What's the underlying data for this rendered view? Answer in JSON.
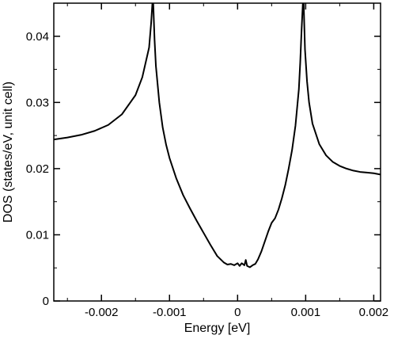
{
  "chart_data": {
    "type": "line",
    "title": "",
    "xlabel": "Energy [eV]",
    "ylabel": "DOS (states/eV, unit cell)",
    "xlim": [
      -0.0027,
      0.0021
    ],
    "ylim": [
      0,
      0.045
    ],
    "grid": false,
    "legend": "none",
    "x_ticks": [
      {
        "value": -0.002,
        "label": "-0.002"
      },
      {
        "value": -0.001,
        "label": "-0.001"
      },
      {
        "value": 0,
        "label": "0"
      },
      {
        "value": 0.001,
        "label": "0.001"
      },
      {
        "value": 0.002,
        "label": "0.002"
      }
    ],
    "y_ticks": [
      {
        "value": 0,
        "label": "0"
      },
      {
        "value": 0.01,
        "label": "0.01"
      },
      {
        "value": 0.02,
        "label": "0.02"
      },
      {
        "value": 0.03,
        "label": "0.03"
      },
      {
        "value": 0.04,
        "label": "0.04"
      }
    ],
    "series": [
      {
        "color": "#000000",
        "points": [
          [
            -0.0027,
            0.0244
          ],
          [
            -0.0025,
            0.0247
          ],
          [
            -0.0023,
            0.0251
          ],
          [
            -0.0021,
            0.0257
          ],
          [
            -0.0019,
            0.0266
          ],
          [
            -0.0017,
            0.0282
          ],
          [
            -0.0015,
            0.0311
          ],
          [
            -0.0014,
            0.0338
          ],
          [
            -0.0013,
            0.0383
          ],
          [
            -0.00127,
            0.042
          ],
          [
            -0.00125,
            0.0452
          ],
          [
            -0.00124,
            0.0452
          ],
          [
            -0.00122,
            0.0395
          ],
          [
            -0.0012,
            0.0355
          ],
          [
            -0.00115,
            0.03
          ],
          [
            -0.0011,
            0.0262
          ],
          [
            -0.00105,
            0.0236
          ],
          [
            -0.001,
            0.0216
          ],
          [
            -0.0009,
            0.0185
          ],
          [
            -0.0008,
            0.016
          ],
          [
            -0.0007,
            0.014
          ],
          [
            -0.0006,
            0.0121
          ],
          [
            -0.0005,
            0.0103
          ],
          [
            -0.0004,
            0.0085
          ],
          [
            -0.0003,
            0.0068
          ],
          [
            -0.0002,
            0.0058
          ],
          [
            -0.00015,
            0.0055
          ],
          [
            -0.0001,
            0.0056
          ],
          [
            -5e-05,
            0.0054
          ],
          [
            0,
            0.0057
          ],
          [
            3e-05,
            0.0053
          ],
          [
            6e-05,
            0.0057
          ],
          [
            0.0001,
            0.0054
          ],
          [
            0.00012,
            0.0062
          ],
          [
            0.00014,
            0.0053
          ],
          [
            0.00018,
            0.0051
          ],
          [
            0.00022,
            0.0054
          ],
          [
            0.00026,
            0.0056
          ],
          [
            0.0003,
            0.0063
          ],
          [
            0.00035,
            0.0075
          ],
          [
            0.0004,
            0.009
          ],
          [
            0.00045,
            0.0105
          ],
          [
            0.0005,
            0.0118
          ],
          [
            0.00055,
            0.0125
          ],
          [
            0.0006,
            0.0138
          ],
          [
            0.00065,
            0.0155
          ],
          [
            0.0007,
            0.0175
          ],
          [
            0.00075,
            0.02
          ],
          [
            0.0008,
            0.0228
          ],
          [
            0.00085,
            0.0265
          ],
          [
            0.0009,
            0.032
          ],
          [
            0.00092,
            0.036
          ],
          [
            0.00094,
            0.041
          ],
          [
            0.00096,
            0.0452
          ],
          [
            0.00097,
            0.0452
          ],
          [
            0.00099,
            0.038
          ],
          [
            0.00102,
            0.0332
          ],
          [
            0.00105,
            0.03
          ],
          [
            0.0011,
            0.0268
          ],
          [
            0.0012,
            0.0237
          ],
          [
            0.0013,
            0.022
          ],
          [
            0.0014,
            0.021
          ],
          [
            0.0015,
            0.0204
          ],
          [
            0.0016,
            0.02
          ],
          [
            0.0017,
            0.0197
          ],
          [
            0.0018,
            0.0195
          ],
          [
            0.0019,
            0.0194
          ],
          [
            0.002,
            0.0193
          ],
          [
            0.0021,
            0.0191
          ]
        ]
      }
    ]
  }
}
